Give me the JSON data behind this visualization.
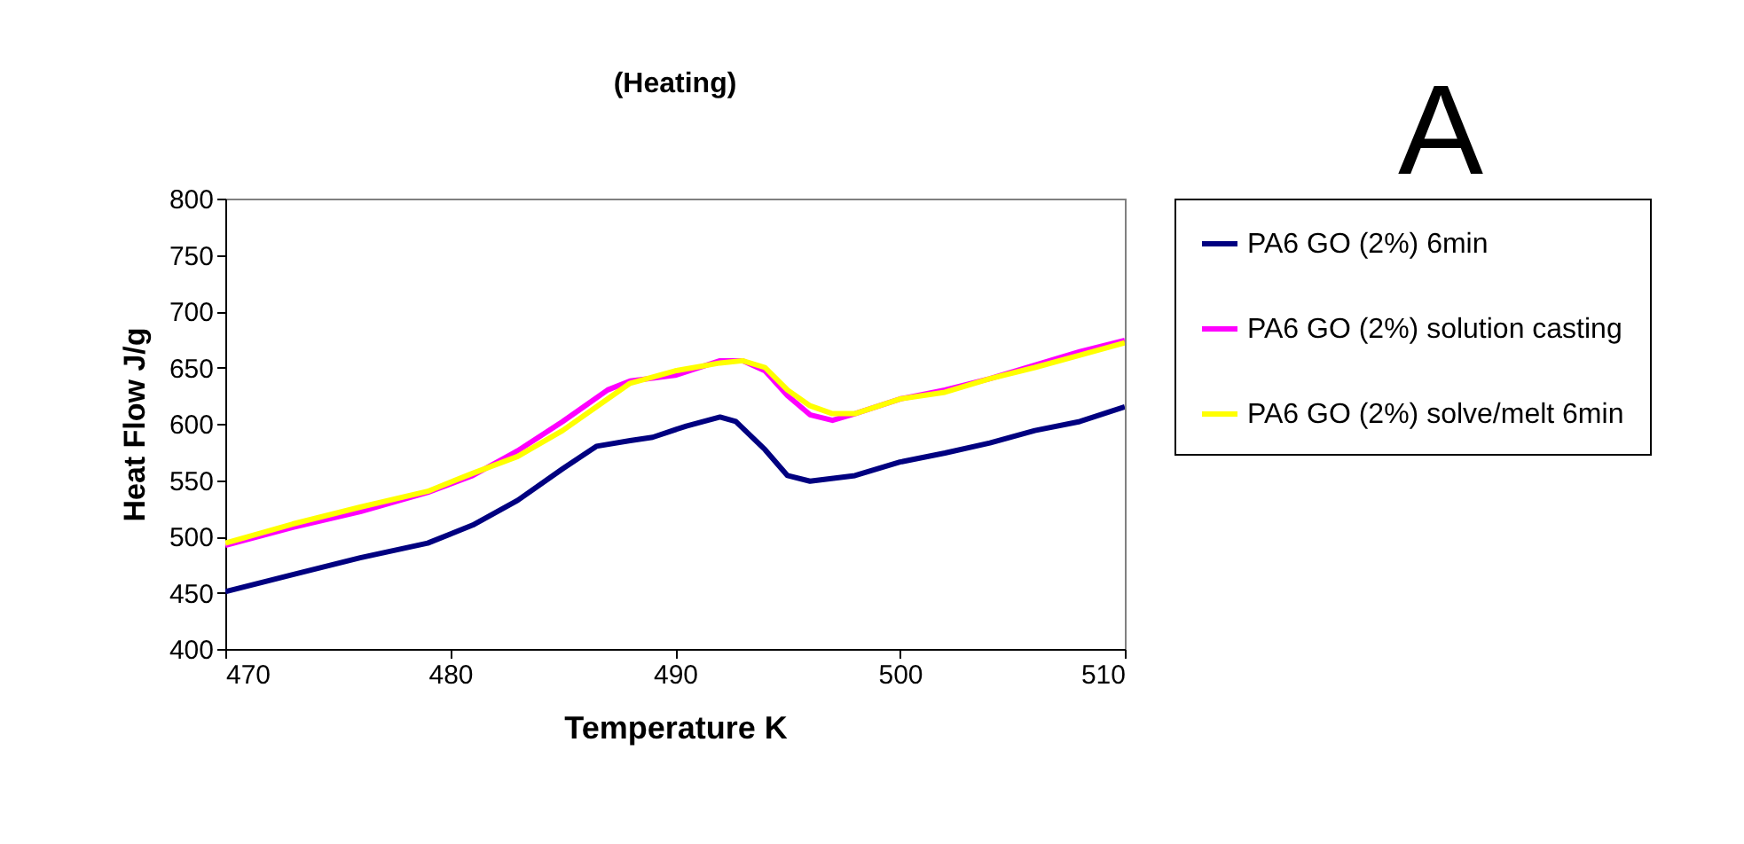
{
  "chart_data": {
    "type": "line",
    "title": "(Heating)",
    "xlabel": "Temperature K",
    "ylabel": "Heat Flow J/g",
    "annotations": [
      "A"
    ],
    "xlim": [
      470,
      510
    ],
    "xticks": [
      470,
      480,
      490,
      500,
      510
    ],
    "ylim": [
      400,
      800
    ],
    "yticks": [
      400,
      450,
      500,
      550,
      600,
      650,
      700,
      750,
      800
    ],
    "grid": false,
    "legend": "right",
    "marker": "none",
    "line_style": "solid",
    "series": [
      {
        "name": "PA6 GO (2%) 6min",
        "color": "#000080",
        "x": [
          470,
          473,
          476,
          479,
          481,
          483,
          485,
          486.5,
          488,
          489,
          490.5,
          492,
          492.7,
          494,
          495,
          496,
          498,
          500,
          502,
          504,
          506,
          508,
          510
        ],
        "values": [
          451,
          466,
          481,
          494,
          510,
          532,
          560,
          580,
          585,
          588,
          598,
          606,
          602,
          577,
          554,
          549,
          554,
          566,
          574,
          583,
          594,
          602,
          615
        ]
      },
      {
        "name": "PA6 GO (2%) solution casting",
        "color": "#ff00ff",
        "x": [
          470,
          473,
          476,
          479,
          481,
          483,
          485,
          486,
          487,
          488,
          490,
          492,
          493,
          494,
          495,
          496,
          497,
          498,
          500,
          502,
          504,
          506,
          508,
          510
        ],
        "values": [
          492,
          508,
          522,
          539,
          554,
          576,
          602,
          616,
          630,
          638,
          643,
          656,
          656,
          647,
          625,
          608,
          603,
          609,
          622,
          630,
          640,
          652,
          664,
          674
        ]
      },
      {
        "name": "PA6 GO (2%) solve/melt 6min",
        "color": "#ffff00",
        "x": [
          470,
          473,
          476,
          479,
          481,
          483,
          485,
          487,
          488,
          490,
          492,
          493,
          494,
          495,
          496,
          497,
          498,
          500,
          502,
          504,
          506,
          508,
          510
        ],
        "values": [
          494,
          511,
          526,
          540,
          556,
          571,
          594,
          622,
          636,
          647,
          654,
          656,
          650,
          630,
          616,
          609,
          609,
          622,
          628,
          640,
          650,
          661,
          672
        ]
      }
    ]
  }
}
